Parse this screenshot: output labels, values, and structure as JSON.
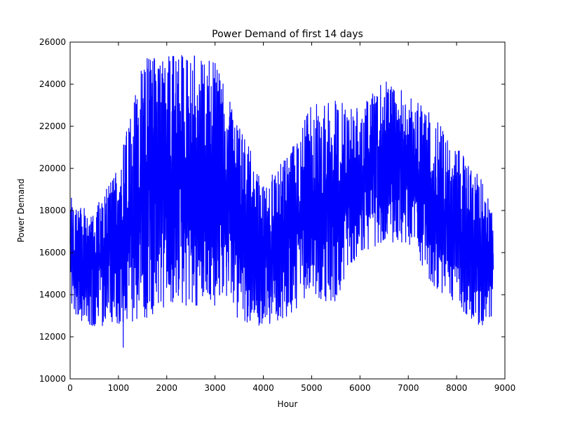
{
  "chart_data": {
    "type": "line",
    "title": "Power Demand of first 14 days",
    "xlabel": "Hour",
    "ylabel": "Power Demand",
    "xlim": [
      0,
      9000
    ],
    "ylim": [
      10000,
      26000
    ],
    "xticks": [
      0,
      1000,
      2000,
      3000,
      4000,
      5000,
      6000,
      7000,
      8000,
      9000
    ],
    "yticks": [
      10000,
      12000,
      14000,
      16000,
      18000,
      20000,
      22000,
      24000,
      26000
    ],
    "grid": false,
    "series": [
      {
        "color": "#0000ff",
        "x_start": 0,
        "x_end": 8760,
        "envelope_x": [
          0,
          500,
          1000,
          1500,
          2000,
          2500,
          3000,
          3500,
          4000,
          4500,
          5000,
          5500,
          6000,
          6500,
          7000,
          7500,
          8000,
          8500,
          8760
        ],
        "envelope_low": [
          13000,
          12500,
          12600,
          12800,
          13500,
          13500,
          13500,
          12800,
          12500,
          13000,
          14000,
          13500,
          16000,
          16500,
          16500,
          14500,
          13500,
          12500,
          13000
        ],
        "envelope_high": [
          18800,
          18000,
          20000,
          25200,
          25300,
          25400,
          25000,
          22000,
          19500,
          20500,
          23000,
          23200,
          22800,
          24200,
          23500,
          22500,
          21000,
          19500,
          18000
        ],
        "min_point": [
          1100,
          11500
        ]
      }
    ]
  }
}
